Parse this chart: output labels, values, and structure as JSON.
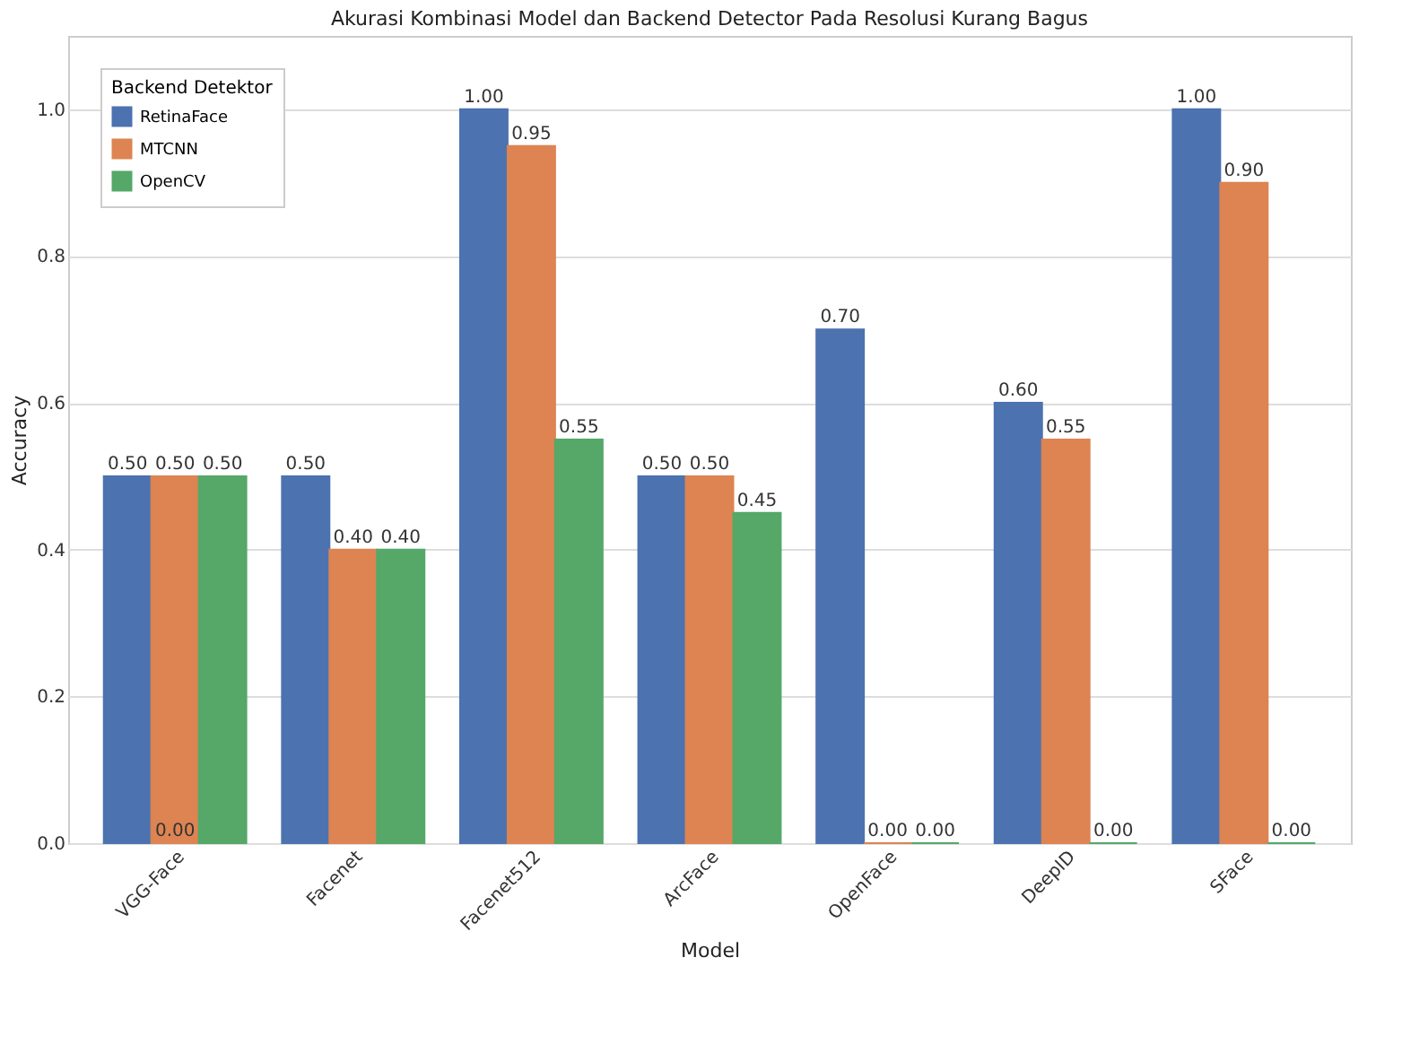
{
  "chart_data": {
    "type": "bar",
    "title": "Akurasi Kombinasi Model dan Backend Detector Pada Resolusi Kurang Bagus",
    "xlabel": "Model",
    "ylabel": "Accuracy",
    "legend_title": "Backend Detektor",
    "categories": [
      "VGG-Face",
      "Facenet",
      "Facenet512",
      "ArcFace",
      "OpenFace",
      "DeepID",
      "SFace"
    ],
    "series": [
      {
        "name": "RetinaFace",
        "color": "#4c72b0",
        "values": [
          0.5,
          0.5,
          1.0,
          0.5,
          0.7,
          0.6,
          1.0
        ],
        "value_labels": [
          "0.50",
          "0.50",
          "1.00",
          "0.50",
          "0.70",
          "0.60",
          "1.00"
        ]
      },
      {
        "name": "MTCNN",
        "color": "#dd8452",
        "values": [
          0.5,
          0.4,
          0.95,
          0.5,
          0,
          0.55,
          0.9
        ],
        "value_labels": [
          "0.50",
          "0.40",
          "0.95",
          "0.50",
          "0.00",
          "0.55",
          "0.90"
        ]
      },
      {
        "name": "OpenCV",
        "color": "#55a868",
        "values": [
          0.5,
          0.4,
          0.55,
          0.45,
          0,
          0,
          0
        ],
        "value_labels": [
          "0.50",
          "0.40",
          "0.55",
          "0.45",
          "0.00",
          "0.00",
          "0.00"
        ]
      }
    ],
    "annotations": [
      {
        "text": "0.00",
        "x": "VGG-Face",
        "y": 0
      }
    ],
    "ylim": [
      0,
      1.1
    ],
    "yticks": [
      {
        "value": 0,
        "label": "0.0"
      },
      {
        "value": 0.2,
        "label": "0.2"
      },
      {
        "value": 0.4,
        "label": "0.4"
      },
      {
        "value": 0.6,
        "label": "0.6"
      },
      {
        "value": 0.8,
        "label": "0.8"
      },
      {
        "value": 1.0,
        "label": "1.0"
      }
    ],
    "grid": "y",
    "legend": "top left"
  }
}
